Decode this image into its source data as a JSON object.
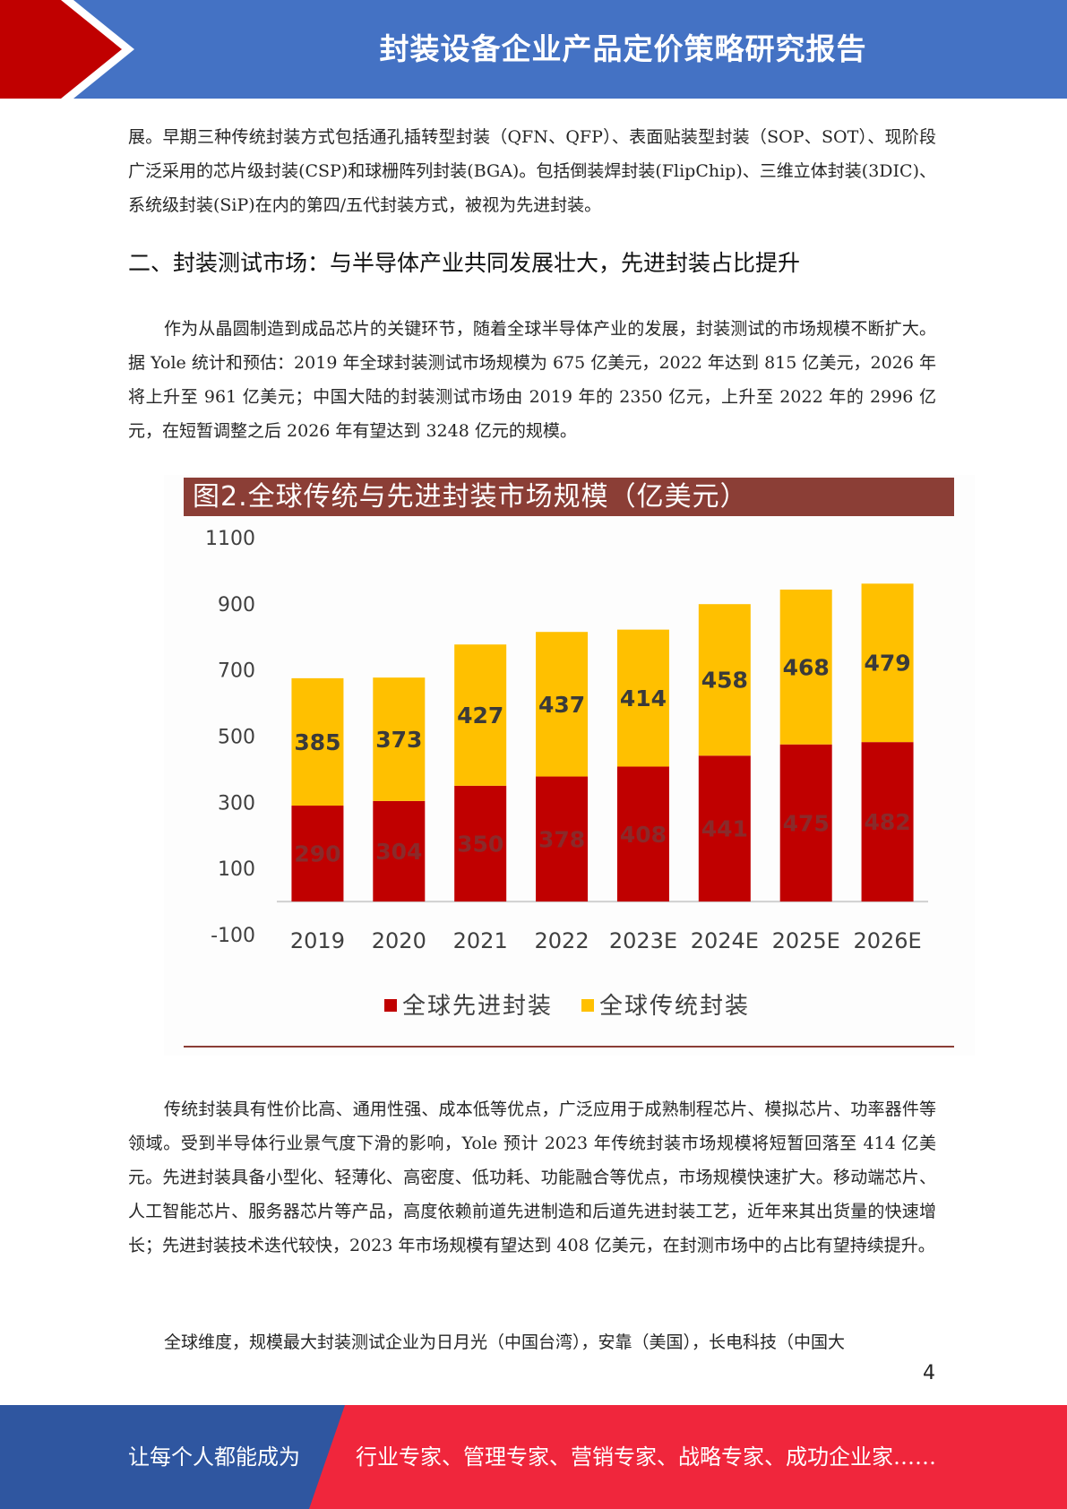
{
  "header": {
    "title": "封装设备企业产品定价策略研究报告"
  },
  "paragraphs": {
    "p1": "展。早期三种传统封装方式包括通孔插转型封装（QFN、QFP）、表面贴装型封装（SOP、SOT）、现阶段广泛采用的芯片级封装(CSP)和球栅阵列封装(BGA)。包括倒装焊封装(FlipChip)、三维立体封装(3DIC)、系统级封装(SiP)在内的第四/五代封装方式，被视为先进封装。",
    "heading2": "二、封装测试市场：与半导体产业共同发展壮大，先进封装占比提升",
    "p2": "作为从晶圆制造到成品芯片的关键环节，随着全球半导体产业的发展，封装测试的市场规模不断扩大。据 Yole 统计和预估：2019 年全球封装测试市场规模为 675 亿美元，2022 年达到 815 亿美元，2026 年将上升至 961 亿美元；中国大陆的封装测试市场由 2019 年的 2350 亿元，上升至 2022 年的 2996 亿元，在短暂调整之后 2026 年有望达到 3248 亿元的规模。",
    "p3": "传统封装具有性价比高、通用性强、成本低等优点，广泛应用于成熟制程芯片、模拟芯片、功率器件等领域。受到半导体行业景气度下滑的影响，Yole 预计 2023 年传统封装市场规模将短暂回落至 414 亿美元。先进封装具备小型化、轻薄化、高密度、低功耗、功能融合等优点，市场规模快速扩大。移动端芯片、人工智能芯片、服务器芯片等产品，高度依赖前道先进制造和后道先进封装工艺，近年来其出货量的快速增长；先进封装技术迭代较快，2023 年市场规模有望达到 408 亿美元，在封测市场中的占比有望持续提升。",
    "p4": "全球维度，规模最大封装测试企业为日月光（中国台湾），安靠（美国），长电科技（中国大"
  },
  "chart_data": {
    "type": "bar",
    "stacked": true,
    "title": "图2.全球传统与先进封装市场规模（亿美元）",
    "categories": [
      "2019",
      "2020",
      "2021",
      "2022",
      "2023E",
      "2024E",
      "2025E",
      "2026E"
    ],
    "series": [
      {
        "name": "全球先进封装",
        "color": "#c00000",
        "values": [
          290,
          304,
          350,
          378,
          408,
          441,
          475,
          482
        ]
      },
      {
        "name": "全球传统封装",
        "color": "#ffc000",
        "values": [
          385,
          373,
          427,
          437,
          414,
          458,
          468,
          479
        ]
      }
    ],
    "y_ticks": [
      "1100",
      "900",
      "700",
      "500",
      "300",
      "100",
      "-100"
    ],
    "ylim": [
      -100,
      1100
    ],
    "legend_position": "bottom",
    "grid": false
  },
  "page_number": "4",
  "footer": {
    "left_text": "让每个人都能成为",
    "right_text": "行业专家、管理专家、营销专家、战略专家、成功企业家……"
  }
}
